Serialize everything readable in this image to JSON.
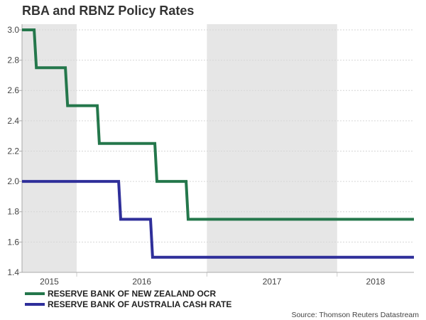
{
  "chart_data": {
    "type": "line",
    "title": "RBA and RBNZ Policy Rates",
    "xlabel": "",
    "ylabel": "",
    "xlim": [
      2015.58,
      2018.59
    ],
    "ylim": [
      1.4,
      3.0375
    ],
    "yticks": [
      1.4,
      1.6,
      1.8,
      2.0,
      2.2,
      2.4,
      2.6,
      2.8,
      3.0
    ],
    "ytick_labels": [
      "1.4",
      "1.6",
      "1.8",
      "2.0",
      "2.2",
      "2.4",
      "2.6",
      "2.8",
      "3.0"
    ],
    "year_bands": [
      {
        "label": "2015",
        "start": 2015,
        "end": 2016,
        "shaded": true
      },
      {
        "label": "2016",
        "start": 2016,
        "end": 2017,
        "shaded": false
      },
      {
        "label": "2017",
        "start": 2017,
        "end": 2018,
        "shaded": true
      },
      {
        "label": "2018",
        "start": 2018,
        "end": 2019,
        "shaded": false
      }
    ],
    "grid": true,
    "legend_position": "bottom-left",
    "series": [
      {
        "name": "RESERVE BANK OF NEW ZEALAND OCR",
        "color": "#24774b",
        "points": [
          [
            2015.58,
            3.0
          ],
          [
            2015.673,
            3.0
          ],
          [
            2015.69,
            2.75
          ],
          [
            2015.913,
            2.75
          ],
          [
            2015.93,
            2.5
          ],
          [
            2016.158,
            2.5
          ],
          [
            2016.174,
            2.25
          ],
          [
            2016.6,
            2.25
          ],
          [
            2016.616,
            2.0
          ],
          [
            2016.84,
            2.0
          ],
          [
            2016.856,
            1.75
          ],
          [
            2018.59,
            1.75
          ]
        ]
      },
      {
        "name": "RESERVE BANK OF AUSTRALIA CASH RATE",
        "color": "#2f2f9a",
        "points": [
          [
            2015.58,
            2.0
          ],
          [
            2016.322,
            2.0
          ],
          [
            2016.338,
            1.75
          ],
          [
            2016.567,
            1.75
          ],
          [
            2016.583,
            1.5
          ],
          [
            2018.59,
            1.5
          ]
        ]
      }
    ],
    "source": "Source: Thomson Reuters Datastream"
  }
}
